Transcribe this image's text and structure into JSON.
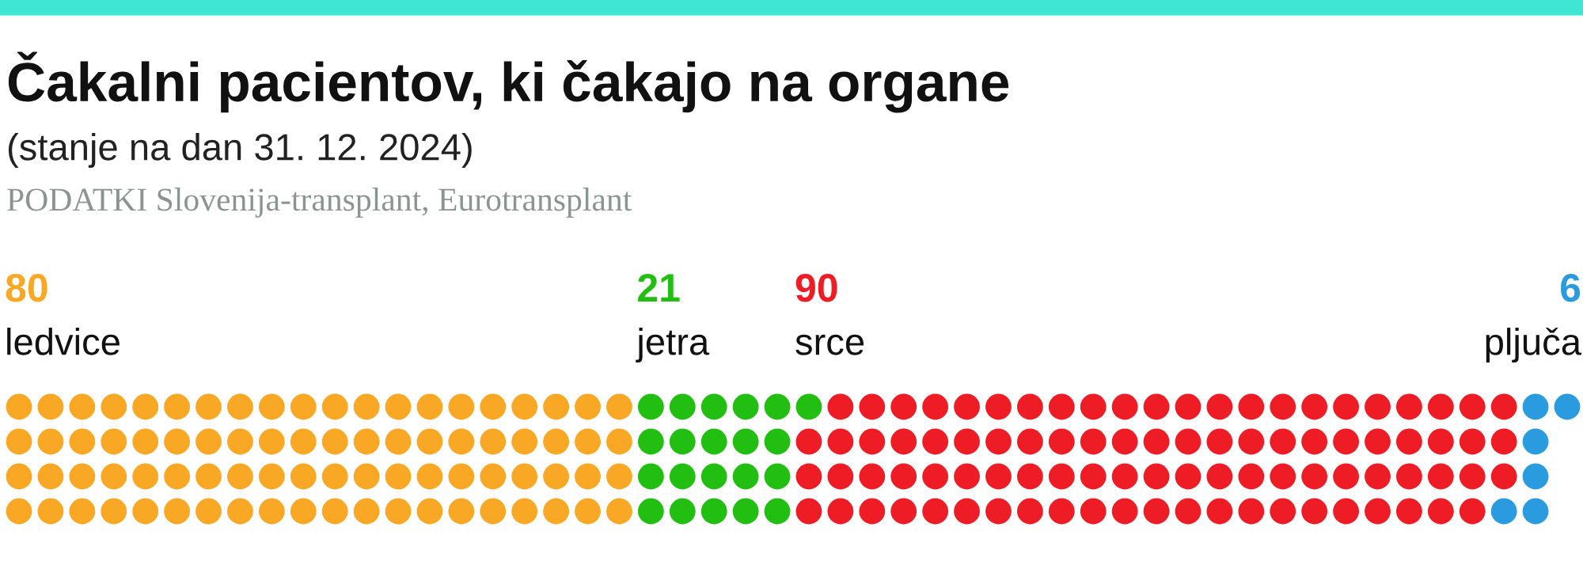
{
  "chart_data": {
    "type": "other",
    "title": "Čakalni pacientov, ki čakajo na organe",
    "subtitle": "(stanje na dan 31. 12. 2024)",
    "annotations": [
      "PODATKI Slovenija-transplant, Eurotransplant"
    ],
    "categories": [
      "ledvice",
      "jetra",
      "srce",
      "pljuča"
    ],
    "values": [
      80,
      21,
      90,
      6
    ],
    "colors": [
      "#f9a825",
      "#22bf12",
      "#ee1c25",
      "#2b9be0"
    ],
    "data_labels": true
  }
}
